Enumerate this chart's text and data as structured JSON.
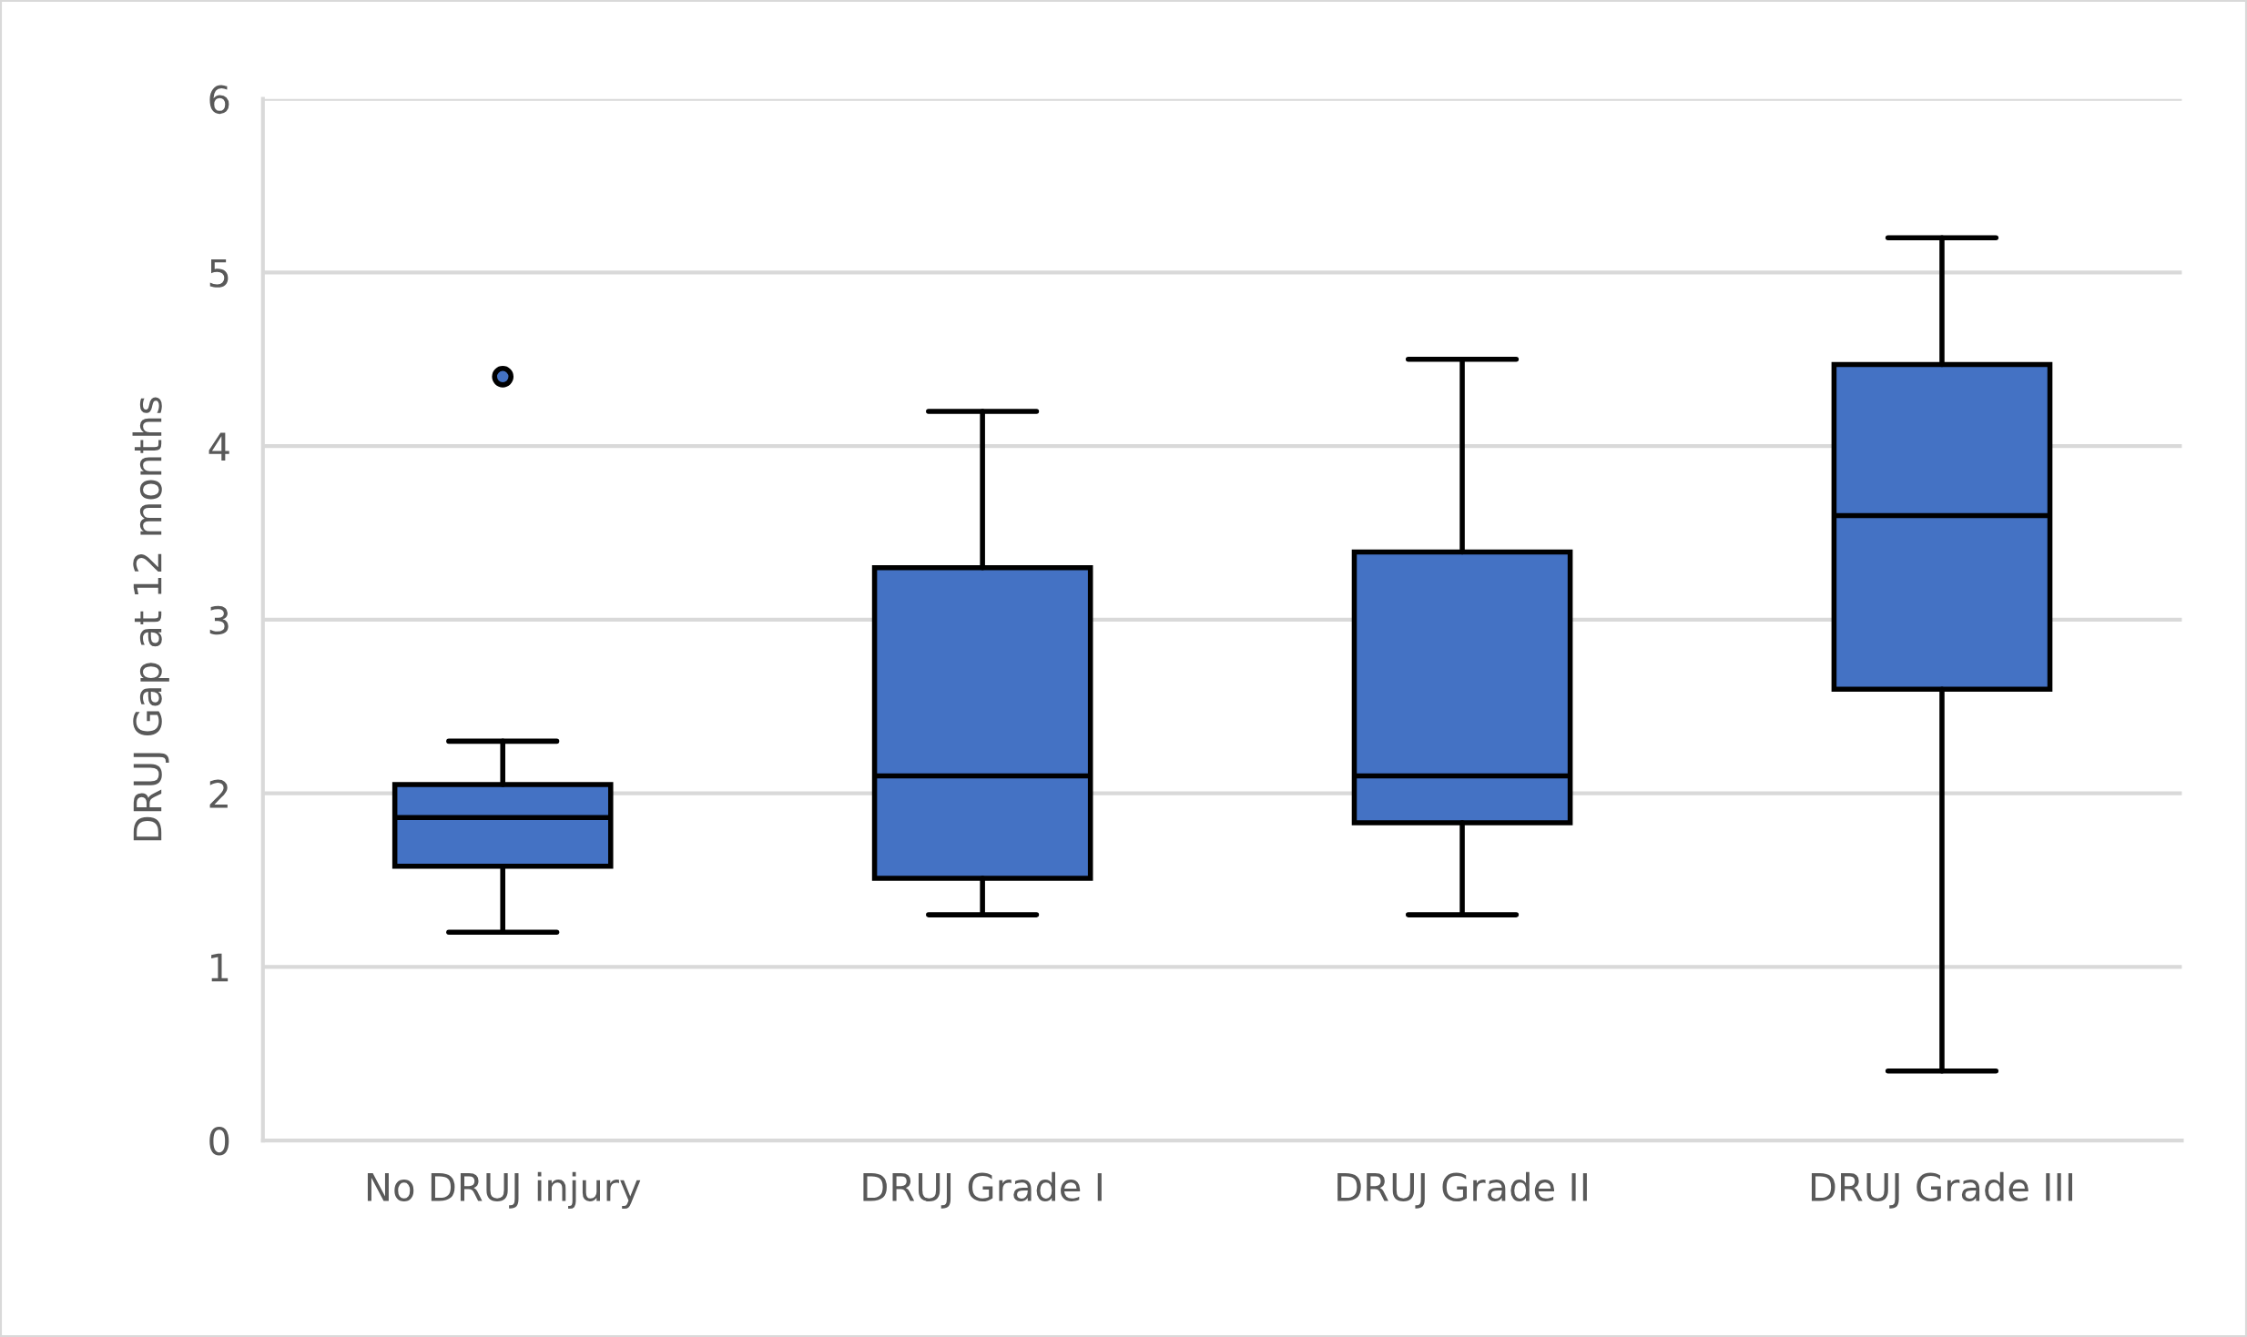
{
  "chart_data": {
    "type": "box",
    "ylabel": "DRUJ Gap at 12 months",
    "categories": [
      "No DRUJ injury",
      "DRUJ Grade I",
      "DRUJ Grade II",
      "DRUJ Grade III"
    ],
    "boxes": [
      {
        "low": 1.2,
        "q1": 1.58,
        "median": 1.86,
        "q3": 2.05,
        "high": 2.3,
        "outliers": [
          4.4
        ]
      },
      {
        "low": 1.3,
        "q1": 1.51,
        "median": 2.1,
        "q3": 3.3,
        "high": 4.2
      },
      {
        "low": 1.3,
        "q1": 1.83,
        "median": 2.1,
        "q3": 3.39,
        "high": 4.5
      },
      {
        "low": 0.4,
        "q1": 2.6,
        "median": 3.6,
        "q3": 4.47,
        "high": 5.2
      }
    ],
    "color": "#4472c4",
    "ylim": [
      0,
      6
    ],
    "yticks": [
      0,
      1,
      2,
      3,
      4,
      5,
      6
    ],
    "grid": "y"
  }
}
